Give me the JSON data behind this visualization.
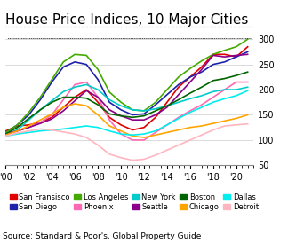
{
  "title": "House Price Indices, 10 Major Cities",
  "source": "Source: Standard & Poor's, Global Property Guide",
  "ylabel": "",
  "xlabel": "",
  "xlim": [
    2000.0,
    2021.5
  ],
  "ylim": [
    50,
    320
  ],
  "yticks": [
    50,
    100,
    150,
    200,
    250,
    300
  ],
  "xtick_years": [
    2000,
    2002,
    2004,
    2006,
    2008,
    2010,
    2012,
    2014,
    2016,
    2018,
    2020
  ],
  "xtick_labels": [
    "'00",
    "'02",
    "'04",
    "'06",
    "'08",
    "'10",
    "'12",
    "'14",
    "'16",
    "'18",
    "'20"
  ],
  "series": {
    "San Fransisco": {
      "color": "#e00000",
      "data": [
        [
          2000,
          118
        ],
        [
          2001,
          128
        ],
        [
          2002,
          130
        ],
        [
          2003,
          135
        ],
        [
          2004,
          145
        ],
        [
          2005,
          165
        ],
        [
          2006,
          185
        ],
        [
          2007,
          200
        ],
        [
          2008,
          175
        ],
        [
          2009,
          145
        ],
        [
          2010,
          130
        ],
        [
          2011,
          120
        ],
        [
          2012,
          125
        ],
        [
          2013,
          145
        ],
        [
          2014,
          175
        ],
        [
          2015,
          205
        ],
        [
          2016,
          225
        ],
        [
          2017,
          245
        ],
        [
          2018,
          270
        ],
        [
          2019,
          270
        ],
        [
          2020,
          265
        ],
        [
          2021,
          285
        ]
      ]
    },
    "San Diego": {
      "color": "#1e22aa",
      "data": [
        [
          2000,
          115
        ],
        [
          2001,
          130
        ],
        [
          2002,
          150
        ],
        [
          2003,
          180
        ],
        [
          2004,
          215
        ],
        [
          2005,
          245
        ],
        [
          2006,
          255
        ],
        [
          2007,
          250
        ],
        [
          2008,
          220
        ],
        [
          2009,
          175
        ],
        [
          2010,
          160
        ],
        [
          2011,
          150
        ],
        [
          2012,
          152
        ],
        [
          2013,
          170
        ],
        [
          2014,
          190
        ],
        [
          2015,
          210
        ],
        [
          2016,
          225
        ],
        [
          2017,
          235
        ],
        [
          2018,
          250
        ],
        [
          2019,
          255
        ],
        [
          2020,
          265
        ],
        [
          2021,
          275
        ]
      ]
    },
    "Los Angeles": {
      "color": "#44aa00",
      "data": [
        [
          2000,
          115
        ],
        [
          2001,
          130
        ],
        [
          2002,
          155
        ],
        [
          2003,
          185
        ],
        [
          2004,
          220
        ],
        [
          2005,
          255
        ],
        [
          2006,
          270
        ],
        [
          2007,
          268
        ],
        [
          2008,
          240
        ],
        [
          2009,
          195
        ],
        [
          2010,
          175
        ],
        [
          2011,
          160
        ],
        [
          2012,
          158
        ],
        [
          2013,
          175
        ],
        [
          2014,
          200
        ],
        [
          2015,
          225
        ],
        [
          2016,
          242
        ],
        [
          2017,
          257
        ],
        [
          2018,
          270
        ],
        [
          2019,
          278
        ],
        [
          2020,
          285
        ],
        [
          2021,
          300
        ]
      ]
    },
    "Phoenix": {
      "color": "#ff69b4",
      "data": [
        [
          2000,
          110
        ],
        [
          2001,
          118
        ],
        [
          2002,
          125
        ],
        [
          2003,
          135
        ],
        [
          2004,
          150
        ],
        [
          2005,
          180
        ],
        [
          2006,
          210
        ],
        [
          2007,
          215
        ],
        [
          2008,
          185
        ],
        [
          2009,
          140
        ],
        [
          2010,
          112
        ],
        [
          2011,
          100
        ],
        [
          2012,
          100
        ],
        [
          2013,
          115
        ],
        [
          2014,
          130
        ],
        [
          2015,
          145
        ],
        [
          2016,
          158
        ],
        [
          2017,
          170
        ],
        [
          2018,
          185
        ],
        [
          2019,
          200
        ],
        [
          2020,
          215
        ],
        [
          2021,
          215
        ]
      ]
    },
    "New York": {
      "color": "#00cccc",
      "data": [
        [
          2000,
          112
        ],
        [
          2001,
          120
        ],
        [
          2002,
          140
        ],
        [
          2003,
          160
        ],
        [
          2004,
          178
        ],
        [
          2005,
          196
        ],
        [
          2006,
          205
        ],
        [
          2007,
          210
        ],
        [
          2008,
          200
        ],
        [
          2009,
          180
        ],
        [
          2010,
          168
        ],
        [
          2011,
          160
        ],
        [
          2012,
          158
        ],
        [
          2013,
          162
        ],
        [
          2014,
          168
        ],
        [
          2015,
          175
        ],
        [
          2016,
          182
        ],
        [
          2017,
          188
        ],
        [
          2018,
          196
        ],
        [
          2019,
          200
        ],
        [
          2020,
          200
        ],
        [
          2021,
          205
        ]
      ]
    },
    "Seattle": {
      "color": "#8b008b",
      "data": [
        [
          2000,
          112
        ],
        [
          2001,
          118
        ],
        [
          2002,
          125
        ],
        [
          2003,
          133
        ],
        [
          2004,
          142
        ],
        [
          2005,
          158
        ],
        [
          2006,
          178
        ],
        [
          2007,
          198
        ],
        [
          2008,
          185
        ],
        [
          2009,
          160
        ],
        [
          2010,
          148
        ],
        [
          2011,
          140
        ],
        [
          2012,
          140
        ],
        [
          2013,
          150
        ],
        [
          2014,
          165
        ],
        [
          2015,
          190
        ],
        [
          2016,
          215
        ],
        [
          2017,
          240
        ],
        [
          2018,
          268
        ],
        [
          2019,
          265
        ],
        [
          2020,
          268
        ],
        [
          2021,
          270
        ]
      ]
    },
    "Boston": {
      "color": "#006400",
      "data": [
        [
          2000,
          112
        ],
        [
          2001,
          125
        ],
        [
          2002,
          143
        ],
        [
          2003,
          160
        ],
        [
          2004,
          175
        ],
        [
          2005,
          185
        ],
        [
          2006,
          185
        ],
        [
          2007,
          183
        ],
        [
          2008,
          170
        ],
        [
          2009,
          152
        ],
        [
          2010,
          148
        ],
        [
          2011,
          145
        ],
        [
          2012,
          148
        ],
        [
          2013,
          158
        ],
        [
          2014,
          168
        ],
        [
          2015,
          180
        ],
        [
          2016,
          193
        ],
        [
          2017,
          205
        ],
        [
          2018,
          218
        ],
        [
          2019,
          222
        ],
        [
          2020,
          228
        ],
        [
          2021,
          235
        ]
      ]
    },
    "Chicago": {
      "color": "#ffa500",
      "data": [
        [
          2000,
          110
        ],
        [
          2001,
          118
        ],
        [
          2002,
          128
        ],
        [
          2003,
          140
        ],
        [
          2004,
          152
        ],
        [
          2005,
          165
        ],
        [
          2006,
          172
        ],
        [
          2007,
          168
        ],
        [
          2008,
          150
        ],
        [
          2009,
          128
        ],
        [
          2010,
          118
        ],
        [
          2011,
          108
        ],
        [
          2012,
          105
        ],
        [
          2013,
          110
        ],
        [
          2014,
          115
        ],
        [
          2015,
          120
        ],
        [
          2016,
          125
        ],
        [
          2017,
          128
        ],
        [
          2018,
          133
        ],
        [
          2019,
          138
        ],
        [
          2020,
          143
        ],
        [
          2021,
          150
        ]
      ]
    },
    "Dallas": {
      "color": "#00eeee",
      "data": [
        [
          2000,
          108
        ],
        [
          2001,
          112
        ],
        [
          2002,
          115
        ],
        [
          2003,
          118
        ],
        [
          2004,
          120
        ],
        [
          2005,
          122
        ],
        [
          2006,
          125
        ],
        [
          2007,
          128
        ],
        [
          2008,
          125
        ],
        [
          2009,
          118
        ],
        [
          2010,
          112
        ],
        [
          2011,
          110
        ],
        [
          2012,
          112
        ],
        [
          2013,
          118
        ],
        [
          2014,
          130
        ],
        [
          2015,
          143
        ],
        [
          2016,
          155
        ],
        [
          2017,
          165
        ],
        [
          2018,
          175
        ],
        [
          2019,
          182
        ],
        [
          2020,
          188
        ],
        [
          2021,
          198
        ]
      ]
    },
    "Detroit": {
      "color": "#ffb6c1",
      "data": [
        [
          2000,
          108
        ],
        [
          2001,
          114
        ],
        [
          2002,
          118
        ],
        [
          2003,
          122
        ],
        [
          2004,
          120
        ],
        [
          2005,
          116
        ],
        [
          2006,
          112
        ],
        [
          2007,
          105
        ],
        [
          2008,
          90
        ],
        [
          2009,
          72
        ],
        [
          2010,
          65
        ],
        [
          2011,
          60
        ],
        [
          2012,
          62
        ],
        [
          2013,
          70
        ],
        [
          2014,
          80
        ],
        [
          2015,
          90
        ],
        [
          2016,
          100
        ],
        [
          2017,
          110
        ],
        [
          2018,
          120
        ],
        [
          2019,
          128
        ],
        [
          2020,
          130
        ],
        [
          2021,
          132
        ]
      ]
    }
  },
  "legend_order": [
    "San Fransisco",
    "San Diego",
    "Los Angeles",
    "Phoenix",
    "New York",
    "Seattle",
    "Boston",
    "Chicago",
    "Dallas",
    "Detroit"
  ],
  "legend_ncol": 5,
  "background_color": "#ffffff",
  "title_fontsize": 11,
  "tick_fontsize": 7,
  "legend_fontsize": 6,
  "source_fontsize": 6.5
}
